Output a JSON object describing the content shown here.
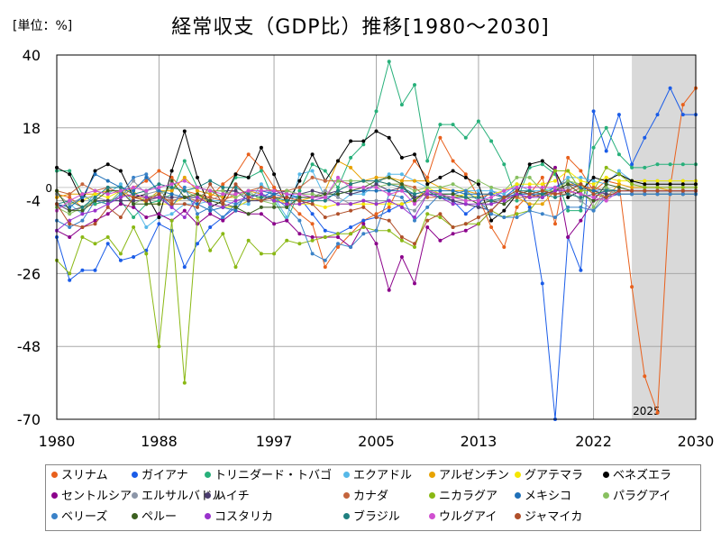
{
  "chart_data": {
    "type": "line",
    "title": "経常収支（GDP比）推移[1980〜2030]",
    "unit_label": "[単位：%]",
    "xlabel": "",
    "ylabel": "",
    "xlim": [
      1980,
      2030
    ],
    "ylim": [
      -70,
      40
    ],
    "x_ticks": [
      "1980",
      "1988",
      "1997",
      "2005",
      "2013",
      "2022",
      "2030"
    ],
    "y_ticks": [
      "40",
      "18",
      "-4",
      "-26",
      "-48",
      "-70"
    ],
    "zero_label": "0",
    "forecast_start": 2025,
    "forecast_label": "2025",
    "grid": true,
    "legend_position": "bottom",
    "x": [
      1980,
      1981,
      1982,
      1983,
      1984,
      1985,
      1986,
      1987,
      1988,
      1989,
      1990,
      1991,
      1992,
      1993,
      1994,
      1995,
      1996,
      1997,
      1998,
      1999,
      2000,
      2001,
      2002,
      2003,
      2004,
      2005,
      2006,
      2007,
      2008,
      2009,
      2010,
      2011,
      2012,
      2013,
      2014,
      2015,
      2016,
      2017,
      2018,
      2019,
      2020,
      2021,
      2022,
      2023,
      2024,
      2025,
      2026,
      2027,
      2028,
      2029,
      2030
    ],
    "series": [
      {
        "name": "スリナム",
        "color": "#e8601c",
        "values": [
          -2,
          -3,
          -6,
          -5,
          -4,
          -3,
          0,
          2,
          5,
          3,
          -1,
          -2,
          -3,
          1,
          4,
          10,
          6,
          0,
          -4,
          -8,
          -11,
          -24,
          -18,
          -14,
          -10,
          -8,
          -6,
          2,
          8,
          3,
          15,
          8,
          4,
          -3,
          -12,
          -18,
          -6,
          -2,
          3,
          -11,
          9,
          5,
          -1,
          2,
          1,
          -30,
          -57,
          -68,
          0,
          25,
          30
        ]
      },
      {
        "name": "ガイアナ",
        "color": "#1a5ce8",
        "values": [
          -15,
          -28,
          -25,
          -25,
          -17,
          -22,
          -21,
          -19,
          -11,
          -13,
          -24,
          -17,
          -12,
          -9,
          -6,
          -4,
          -3,
          -1,
          -2,
          -3,
          -8,
          -13,
          -14,
          -12,
          -10,
          -9,
          -7,
          -5,
          -3,
          -2,
          -3,
          -4,
          -8,
          -5,
          -1,
          -3,
          0,
          -6,
          -29,
          -70,
          -15,
          -25,
          23,
          11,
          22,
          7,
          15,
          22,
          30,
          22,
          22
        ]
      },
      {
        "name": "トリニダード・トバゴ",
        "color": "#27b07a",
        "values": [
          5,
          5,
          -2,
          -5,
          -4,
          -4,
          -9,
          -5,
          -4,
          -2,
          8,
          0,
          -1,
          -3,
          3,
          3,
          5,
          -4,
          -10,
          -1,
          7,
          5,
          0,
          9,
          13,
          23,
          38,
          25,
          31,
          8,
          19,
          19,
          15,
          20,
          14,
          7,
          -4,
          6,
          7,
          4,
          -7,
          -7,
          12,
          18,
          10,
          6,
          6,
          7,
          7,
          7,
          7
        ]
      },
      {
        "name": "エクアドル",
        "color": "#56b8e8",
        "values": [
          -6,
          -5,
          -8,
          -1,
          -2,
          1,
          -5,
          -12,
          -9,
          -8,
          -5,
          -5,
          -4,
          -4,
          -5,
          -5,
          1,
          -3,
          -9,
          4,
          5,
          -3,
          -5,
          -2,
          -2,
          1,
          4,
          4,
          2,
          0,
          -2,
          -2,
          -1,
          -1,
          -1,
          -2,
          1,
          -1,
          -1,
          0,
          3,
          3,
          2,
          1,
          5,
          2,
          2,
          2,
          2,
          2,
          2
        ]
      },
      {
        "name": "アルゼンチン",
        "color": "#e8a300",
        "values": [
          -3,
          -2,
          -2,
          -2,
          -1,
          -1,
          -3,
          -4,
          -1,
          -1,
          3,
          -1,
          -2,
          -3,
          -3,
          -1,
          -2,
          -4,
          -4,
          -4,
          -3,
          -1,
          8,
          6,
          2,
          3,
          3,
          2,
          2,
          2,
          0,
          -1,
          -1,
          -2,
          -2,
          -3,
          -3,
          -5,
          -5,
          -1,
          1,
          1,
          -1,
          -3,
          1,
          0,
          0,
          0,
          -1,
          -1,
          -1
        ]
      },
      {
        "name": "グアテマラ",
        "color": "#f5e600",
        "values": [
          -2,
          -5,
          -4,
          -2,
          -3,
          -1,
          -1,
          -5,
          -5,
          -5,
          -3,
          -2,
          -5,
          -6,
          -6,
          -4,
          -3,
          -3,
          -5,
          -5,
          -5,
          -6,
          -5,
          -5,
          -5,
          -5,
          -5,
          -5,
          -4,
          0,
          -2,
          -3,
          -2,
          -3,
          -2,
          -1,
          1,
          1,
          1,
          2,
          5,
          2,
          1,
          3,
          2,
          2,
          2,
          2,
          2,
          2,
          2
        ]
      },
      {
        "name": "ベネズエラ",
        "color": "#000000",
        "values": [
          6,
          4,
          -4,
          5,
          7,
          5,
          -3,
          -2,
          -9,
          5,
          17,
          3,
          -6,
          -4,
          4,
          3,
          12,
          4,
          -5,
          2,
          10,
          2,
          8,
          14,
          14,
          17,
          15,
          9,
          10,
          1,
          3,
          5,
          3,
          1,
          -10,
          -7,
          -2,
          7,
          8,
          5,
          -3,
          -1,
          3,
          2,
          4,
          2,
          1,
          1,
          1,
          1,
          1
        ]
      },
      {
        "name": "セントルシア",
        "color": "#8b008b",
        "values": [
          -13,
          -15,
          -12,
          -10,
          -8,
          -5,
          -6,
          -9,
          -8,
          -10,
          -7,
          -11,
          -8,
          -10,
          -7,
          -8,
          -8,
          -11,
          -10,
          -14,
          -15,
          -15,
          -15,
          -18,
          -11,
          -17,
          -31,
          -21,
          -29,
          -12,
          -16,
          -14,
          -13,
          -11,
          -7,
          -3,
          -2,
          -3,
          -2,
          6,
          -15,
          -10,
          -4,
          -3,
          -2,
          -2,
          -2,
          -2,
          -2,
          -2,
          -2
        ]
      },
      {
        "name": "エルサルバドル",
        "color": "#8c96a8",
        "values": [
          -2,
          -5,
          -3,
          -3,
          -4,
          -3,
          2,
          -2,
          -1,
          -4,
          -3,
          -3,
          -4,
          -2,
          -1,
          -3,
          -1,
          -1,
          -1,
          -2,
          -3,
          -1,
          -3,
          -5,
          -4,
          -4,
          -4,
          -6,
          -7,
          -2,
          -2,
          -4,
          -5,
          -6,
          -5,
          -3,
          -2,
          -2,
          -3,
          -1,
          0,
          -4,
          -7,
          -1,
          -2,
          -2,
          -2,
          -2,
          -2,
          -2,
          -2
        ]
      },
      {
        "name": "ハイチ",
        "color": "#4a3c6e",
        "values": [
          -5,
          -7,
          -6,
          -4,
          -4,
          -4,
          -4,
          -4,
          -3,
          -3,
          -3,
          -3,
          -1,
          -1,
          -1,
          -4,
          -4,
          -2,
          -1,
          -2,
          -1,
          -2,
          -1,
          -2,
          -1,
          1,
          -1,
          0,
          -3,
          -2,
          -2,
          -4,
          -5,
          -6,
          -7,
          -3,
          -1,
          -2,
          -3,
          -1,
          1,
          0,
          -1,
          -2,
          -2,
          -2,
          -2,
          -2,
          -2,
          -2,
          -2
        ]
      },
      {
        "name": "カナダ",
        "color": "#c4643c",
        "values": [
          -1,
          -2,
          1,
          -1,
          0,
          -2,
          -3,
          -3,
          -3,
          -4,
          -3,
          -4,
          -3,
          -4,
          -2,
          -1,
          0,
          -1,
          -1,
          0,
          3,
          2,
          2,
          1,
          2,
          2,
          1,
          1,
          0,
          -3,
          -3,
          -3,
          -3,
          -3,
          -2,
          -3,
          -3,
          -3,
          -2,
          -2,
          -2,
          0,
          0,
          -1,
          -1,
          -1,
          -1,
          -1,
          -1,
          -1,
          -1
        ]
      },
      {
        "name": "ニカラグア",
        "color": "#8ab814",
        "values": [
          -22,
          -26,
          -15,
          -17,
          -15,
          -20,
          -12,
          -20,
          -48,
          -10,
          -59,
          -9,
          -19,
          -14,
          -24,
          -16,
          -20,
          -20,
          -16,
          -17,
          -16,
          -15,
          -14,
          -14,
          -12,
          -13,
          -13,
          -16,
          -18,
          -8,
          -9,
          -12,
          -11,
          -11,
          -7,
          -9,
          -8,
          -7,
          -2,
          5,
          5,
          -1,
          -1,
          6,
          4,
          1,
          0,
          0,
          0,
          0,
          0
        ]
      },
      {
        "name": "メキシコ",
        "color": "#1f70b8",
        "values": [
          -5,
          -6,
          -3,
          4,
          2,
          0,
          -1,
          3,
          -1,
          -2,
          -3,
          -5,
          -7,
          -6,
          -7,
          -1,
          -1,
          -2,
          -3,
          -3,
          -3,
          -3,
          -2,
          -1,
          -1,
          -1,
          -1,
          -1,
          -2,
          -1,
          -1,
          -1,
          -2,
          -2,
          -2,
          -3,
          -2,
          -2,
          -2,
          0,
          2,
          0,
          -1,
          -0.5,
          -1,
          -1,
          -1,
          -1,
          -1,
          -1,
          -1
        ]
      },
      {
        "name": "パラグアイ",
        "color": "#88c060",
        "values": [
          -6,
          -8,
          -6,
          -4,
          -5,
          -1,
          -5,
          -3,
          -2,
          0,
          -1,
          -3,
          -1,
          -1,
          -3,
          -1,
          -4,
          -5,
          -1,
          -2,
          -2,
          -3,
          2,
          2,
          2,
          0,
          1,
          1,
          -1,
          0,
          0,
          1,
          -1,
          2,
          0,
          -1,
          3,
          3,
          -1,
          -1,
          2,
          1,
          -6,
          0,
          -2,
          -2,
          -2,
          -2,
          -2,
          -2,
          -2
        ]
      },
      {
        "name": "ベリーズ",
        "color": "#3a82c8",
        "values": [
          -10,
          -12,
          -10,
          -4,
          -5,
          -2,
          3,
          4,
          -2,
          -6,
          0,
          -8,
          -6,
          -9,
          -5,
          -3,
          -2,
          -3,
          -6,
          -10,
          -20,
          -22,
          -17,
          -18,
          -14,
          -13,
          -2,
          -3,
          -10,
          -6,
          -2,
          -2,
          -1,
          -4,
          -8,
          -9,
          -9,
          -7,
          -8,
          -9,
          -6,
          -6,
          -7,
          -3,
          -2,
          -2,
          -2,
          -2,
          -2,
          -2,
          -2
        ]
      },
      {
        "name": "ペルー",
        "color": "#3c6020",
        "values": [
          -1,
          -7,
          -7,
          -4,
          -1,
          -1,
          -5,
          -5,
          -5,
          2,
          -3,
          -2,
          -4,
          -5,
          -6,
          -8,
          -6,
          -6,
          -6,
          -3,
          -3,
          -2,
          -2,
          -1,
          0,
          2,
          3,
          1,
          -4,
          -1,
          -2,
          -2,
          -3,
          -5,
          -4,
          -5,
          -2,
          -1,
          -2,
          -1,
          1,
          -2,
          -4,
          1,
          0,
          -1,
          -1,
          -1,
          -1,
          -1,
          -1
        ]
      },
      {
        "name": "コスタリカ",
        "color": "#9932cc",
        "values": [
          -13,
          -10,
          -8,
          -7,
          -5,
          -3,
          -2,
          -3,
          -3,
          -6,
          -9,
          -3,
          -5,
          -6,
          -4,
          -3,
          -2,
          -4,
          -5,
          -5,
          -4,
          -3,
          -5,
          -5,
          -4,
          -5,
          -4,
          -6,
          -9,
          -2,
          -3,
          -5,
          -5,
          -5,
          -5,
          -4,
          -2,
          -3,
          -3,
          -1,
          -1,
          -2,
          -3,
          -1,
          -1,
          -1,
          -1,
          -1,
          -1,
          -1,
          -1
        ]
      },
      {
        "name": "ブラジル",
        "color": "#208080",
        "values": [
          -5,
          -4,
          -6,
          -3,
          0,
          0,
          -2,
          -1,
          1,
          0,
          -1,
          0,
          2,
          0,
          0,
          -2,
          -3,
          -3,
          -4,
          -4,
          -4,
          -4,
          -1,
          1,
          2,
          2,
          1,
          0,
          -2,
          -1,
          -3,
          -3,
          -3,
          -3,
          -4,
          -3,
          -1,
          -1,
          -2,
          -3,
          -2,
          -3,
          -2,
          -1,
          -1,
          -1,
          -1,
          -1,
          -1,
          -1,
          -1
        ]
      },
      {
        "name": "ウルグアイ",
        "color": "#d050d0",
        "values": [
          -7,
          -4,
          -2,
          -1,
          -2,
          -1,
          0,
          -1,
          0,
          1,
          2,
          0,
          -1,
          -2,
          -2,
          -1,
          -1,
          -1,
          -2,
          -2,
          -3,
          -3,
          3,
          0,
          0,
          0,
          -2,
          -1,
          -5,
          -1,
          -2,
          -3,
          -4,
          -4,
          -3,
          -1,
          0,
          0,
          0,
          0,
          -1,
          -2,
          -3,
          -4,
          -1,
          -1,
          -1,
          -1,
          -1,
          -1,
          -1
        ]
      },
      {
        "name": "ジャマイカ",
        "color": "#b0502a",
        "values": [
          -5,
          -11,
          -12,
          -11,
          -6,
          -9,
          -3,
          -4,
          -2,
          -5,
          -5,
          -6,
          1,
          -5,
          1,
          -3,
          -4,
          -3,
          -3,
          -4,
          -5,
          -9,
          -8,
          -7,
          -6,
          -9,
          -10,
          -15,
          -17,
          -10,
          -8,
          -12,
          -11,
          -9,
          -7,
          -3,
          -1,
          -2,
          -1,
          -2,
          -1,
          1,
          -2,
          -3,
          -1,
          -1,
          -1,
          -1,
          -1,
          -1,
          -1
        ]
      }
    ]
  }
}
